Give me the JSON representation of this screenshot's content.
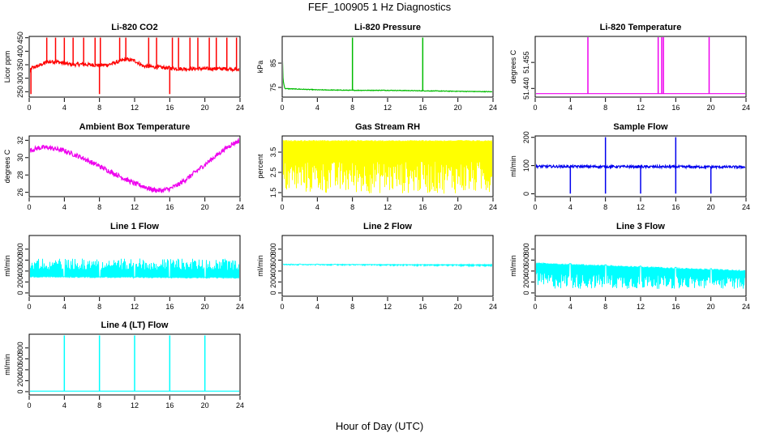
{
  "figure": {
    "title": "FEF_100905  1 Hz Diagnostics",
    "xlabel": "Hour of Day (UTC)"
  },
  "chart_data": [
    {
      "type": "line",
      "title": "Li-820 CO2",
      "ylabel": "Licor ppm",
      "color": "#ff0000",
      "xlim": [
        0,
        24
      ],
      "ylim": [
        230,
        455
      ],
      "xticks": [
        "0",
        "4",
        "8",
        "12",
        "16",
        "20",
        "24"
      ],
      "yticks": [
        "250",
        "300",
        "350",
        "400",
        "450"
      ],
      "series": [
        {
          "x": [
            0,
            0.3,
            1,
            2,
            3,
            4,
            5,
            6,
            7,
            8,
            9,
            10,
            11,
            12,
            13,
            14,
            15,
            16,
            17,
            18,
            19,
            20,
            21,
            22,
            23,
            24
          ],
          "values": [
            320,
            338,
            345,
            360,
            362,
            355,
            350,
            352,
            350,
            348,
            350,
            360,
            370,
            365,
            345,
            342,
            340,
            338,
            335,
            335,
            335,
            335,
            335,
            335,
            335,
            330
          ]
        }
      ]
    },
    {
      "type": "line",
      "title": "Li-820 Pressure",
      "ylabel": "kPa",
      "color": "#00bb00",
      "xlim": [
        0,
        24
      ],
      "ylim": [
        71,
        96
      ],
      "xticks": [
        "0",
        "4",
        "8",
        "12",
        "16",
        "20",
        "24"
      ],
      "yticks": [
        "75",
        "85"
      ],
      "series": [
        {
          "x": [
            0,
            0.1,
            0.3,
            4,
            8,
            12,
            16,
            20,
            24
          ],
          "values": [
            91,
            78,
            74.5,
            74,
            73.8,
            73.8,
            73.6,
            73.4,
            73.2
          ]
        }
      ]
    },
    {
      "type": "line",
      "title": "Li-820 Temperature",
      "ylabel": "degrees C",
      "color": "#ee00ee",
      "xlim": [
        0,
        24
      ],
      "ylim": [
        51.435,
        51.47
      ],
      "xticks": [
        "0",
        "4",
        "8",
        "12",
        "16",
        "20",
        "24"
      ],
      "yticks": [
        "51.440",
        "51.455"
      ],
      "series": [
        {
          "x": [
            0,
            24
          ],
          "values": [
            51.437,
            51.437
          ]
        }
      ]
    },
    {
      "type": "line",
      "title": "Ambient Box Temperature",
      "ylabel": "degrees C",
      "color": "#ee00ee",
      "xlim": [
        0,
        24
      ],
      "ylim": [
        25.5,
        32.5
      ],
      "xticks": [
        "0",
        "4",
        "8",
        "12",
        "16",
        "20",
        "24"
      ],
      "yticks": [
        "26",
        "28",
        "30",
        "32"
      ],
      "series": [
        {
          "x": [
            0,
            1,
            2,
            3,
            4,
            5,
            6,
            7,
            8,
            9,
            10,
            11,
            12,
            13,
            14,
            15,
            16,
            17,
            18,
            19,
            20,
            21,
            22,
            23,
            24
          ],
          "values": [
            30.8,
            31.1,
            31.2,
            31.0,
            30.8,
            30.4,
            30.0,
            29.5,
            29.0,
            28.5,
            28.0,
            27.5,
            27.0,
            26.7,
            26.3,
            26.2,
            26.4,
            26.9,
            27.6,
            28.4,
            29.2,
            30.0,
            30.8,
            31.5,
            32.0
          ]
        }
      ]
    },
    {
      "type": "line",
      "title": "Gas Stream RH",
      "ylabel": "percent",
      "color": "#ffff00",
      "xlim": [
        0,
        24
      ],
      "ylim": [
        1.3,
        4.3
      ],
      "xticks": [
        "0",
        "4",
        "8",
        "12",
        "16",
        "20",
        "24"
      ],
      "yticks": [
        "1.5",
        "2.5",
        "3.5"
      ],
      "series": [
        {
          "x": [
            0,
            24
          ],
          "values": [
            4.1,
            4.1
          ]
        }
      ]
    },
    {
      "type": "line",
      "title": "Sample Flow",
      "ylabel": "ml/min",
      "color": "#0000ee",
      "xlim": [
        0,
        24
      ],
      "ylim": [
        -10,
        205
      ],
      "xticks": [
        "0",
        "4",
        "8",
        "12",
        "16",
        "20",
        "24"
      ],
      "yticks": [
        "0",
        "100",
        "200"
      ],
      "series": [
        {
          "x": [
            0,
            24
          ],
          "values": [
            97,
            95
          ]
        }
      ]
    },
    {
      "type": "line",
      "title": "Line 1 Flow",
      "ylabel": "ml/min",
      "color": "#00ffff",
      "xlim": [
        0,
        24
      ],
      "ylim": [
        -60,
        1050
      ],
      "xticks": [
        "0",
        "4",
        "8",
        "12",
        "16",
        "20",
        "24"
      ],
      "yticks": [
        "0",
        "200",
        "400",
        "600",
        "800"
      ],
      "series": [
        {
          "x": [
            0,
            24
          ],
          "values": [
            300,
            280
          ]
        }
      ]
    },
    {
      "type": "line",
      "title": "Line 2 Flow",
      "ylabel": "ml/min",
      "color": "#00ffff",
      "xlim": [
        0,
        24
      ],
      "ylim": [
        -60,
        1050
      ],
      "xticks": [
        "0",
        "4",
        "8",
        "12",
        "16",
        "20",
        "24"
      ],
      "yticks": [
        "0",
        "200",
        "400",
        "600",
        "800"
      ],
      "series": [
        {
          "x": [
            0,
            24
          ],
          "values": [
            530,
            510
          ]
        }
      ]
    },
    {
      "type": "line",
      "title": "Line 3 Flow",
      "ylabel": "ml/min",
      "color": "#00ffff",
      "xlim": [
        0,
        24
      ],
      "ylim": [
        -60,
        1050
      ],
      "xticks": [
        "0",
        "4",
        "8",
        "12",
        "16",
        "20",
        "24"
      ],
      "yticks": [
        "0",
        "200",
        "400",
        "600",
        "800"
      ],
      "series": [
        {
          "x": [
            0,
            24
          ],
          "values": [
            560,
            420
          ]
        }
      ]
    },
    {
      "type": "line",
      "title": "Line 4 (LT) Flow",
      "ylabel": "ml/min",
      "color": "#00ffff",
      "xlim": [
        0,
        24
      ],
      "ylim": [
        -60,
        1050
      ],
      "xticks": [
        "0",
        "4",
        "8",
        "12",
        "16",
        "20",
        "24"
      ],
      "yticks": [
        "0",
        "200",
        "400",
        "600",
        "800"
      ],
      "series": [
        {
          "x": [
            0,
            4,
            8,
            12,
            16,
            20,
            24
          ],
          "values": [
            10,
            10,
            10,
            10,
            10,
            10,
            10
          ]
        }
      ]
    }
  ]
}
